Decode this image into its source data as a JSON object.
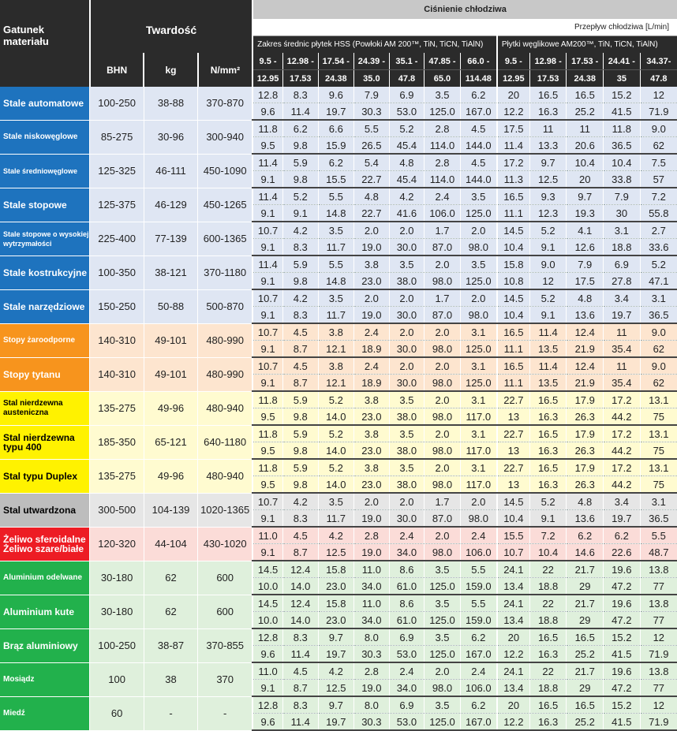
{
  "header": {
    "material_label": "Gatunek materiału",
    "hardness_label": "Twardość",
    "pressure_label": "Ciśnienie chłodziwa",
    "flow_label": "Przepływ chłodziwa [L/min]",
    "hss_label": "Zakres średnic płytek HSS (Powłoki AM 200™, TiN, TiCN, TiAlN)",
    "carbide_label": "Płytki węglikowe AM200™, TiN, TiCN, TiAlN)",
    "units": [
      "BHN",
      "kg",
      "N/mm²"
    ],
    "hss_ranges": [
      {
        "top": "9.5 -",
        "bottom": "12.95"
      },
      {
        "top": "12.98 -",
        "bottom": "17.53"
      },
      {
        "top": "17.54 -",
        "bottom": "24.38"
      },
      {
        "top": "24.39 -",
        "bottom": "35.0"
      },
      {
        "top": "35.1 -",
        "bottom": "47.8"
      },
      {
        "top": "47.85 -",
        "bottom": "65.0"
      },
      {
        "top": "66.0 -",
        "bottom": "114.48"
      }
    ],
    "carbide_ranges": [
      {
        "top": "9.5 -",
        "bottom": "12.95"
      },
      {
        "top": "12.98 -",
        "bottom": "17.53"
      },
      {
        "top": "17.53 -",
        "bottom": "24.38"
      },
      {
        "top": "24.41 -",
        "bottom": "35"
      },
      {
        "top": "34.37-",
        "bottom": "47.8"
      }
    ]
  },
  "colors": {
    "blue": "#1e73be",
    "orange": "#f7941d",
    "yellow": "#fff200",
    "gray": "#bdbdbd",
    "red": "#ed1c24",
    "green": "#22b14c"
  },
  "rows": [
    {
      "material": "Stale automatowe",
      "color": "blue",
      "size": "l",
      "bhn": "100-250",
      "kg": "38-88",
      "nmm": "370-870",
      "r1": [
        "12.8",
        "8.3",
        "9.6",
        "7.9",
        "6.9",
        "3.5",
        "6.2",
        "20",
        "16.5",
        "16.5",
        "15.2",
        "12"
      ],
      "r2": [
        "9.6",
        "11.4",
        "19.7",
        "30.3",
        "53.0",
        "125.0",
        "167.0",
        "12.2",
        "16.3",
        "25.2",
        "41.5",
        "71.9"
      ]
    },
    {
      "material": "Stale niskowęglowe",
      "color": "blue",
      "size": "s",
      "bhn": "85-275",
      "kg": "30-96",
      "nmm": "300-940",
      "r1": [
        "11.8",
        "6.2",
        "6.6",
        "5.5",
        "5.2",
        "2.8",
        "4.5",
        "17.5",
        "11",
        "11",
        "11.8",
        "9.0"
      ],
      "r2": [
        "9.5",
        "9.8",
        "15.9",
        "26.5",
        "45.4",
        "114.0",
        "144.0",
        "11.4",
        "13.3",
        "20.6",
        "36.5",
        "62"
      ]
    },
    {
      "material": "Stale średniowęglowe",
      "color": "blue",
      "size": "xs",
      "bhn": "125-325",
      "kg": "46-111",
      "nmm": "450-1090",
      "r1": [
        "11.4",
        "5.9",
        "6.2",
        "5.4",
        "4.8",
        "2.8",
        "4.5",
        "17.2",
        "9.7",
        "10.4",
        "10.4",
        "7.5"
      ],
      "r2": [
        "9.1",
        "9.8",
        "15.5",
        "22.7",
        "45.4",
        "114.0",
        "144.0",
        "11.3",
        "12.5",
        "20",
        "33.8",
        "57"
      ]
    },
    {
      "material": "Stale stopowe",
      "color": "blue",
      "size": "l",
      "bhn": "125-375",
      "kg": "46-129",
      "nmm": "450-1265",
      "r1": [
        "11.4",
        "5.2",
        "5.5",
        "4.8",
        "4.2",
        "2.4",
        "3.5",
        "16.5",
        "9.3",
        "9.7",
        "7.9",
        "7.2"
      ],
      "r2": [
        "9.1",
        "9.1",
        "14.8",
        "22.7",
        "41.6",
        "106.0",
        "125.0",
        "11.1",
        "12.3",
        "19.3",
        "30",
        "55.8"
      ]
    },
    {
      "material": "Stale stopowe o wysokiej wytrzymałości",
      "color": "blue",
      "size": "xs",
      "bhn": "225-400",
      "kg": "77-139",
      "nmm": "600-1365",
      "r1": [
        "10.7",
        "4.2",
        "3.5",
        "2.0",
        "2.0",
        "1.7",
        "2.0",
        "14.5",
        "5.2",
        "4.1",
        "3.1",
        "2.7"
      ],
      "r2": [
        "9.1",
        "8.3",
        "11.7",
        "19.0",
        "30.0",
        "87.0",
        "98.0",
        "10.4",
        "9.1",
        "12.6",
        "18.8",
        "33.6"
      ]
    },
    {
      "material": "Stale kostrukcyjne",
      "color": "blue",
      "size": "l",
      "bhn": "100-350",
      "kg": "38-121",
      "nmm": "370-1180",
      "r1": [
        "11.4",
        "5.9",
        "5.5",
        "3.8",
        "3.5",
        "2.0",
        "3.5",
        "15.8",
        "9.0",
        "7.9",
        "6.9",
        "5.2"
      ],
      "r2": [
        "9.1",
        "9.8",
        "14.8",
        "23.0",
        "38.0",
        "98.0",
        "125.0",
        "10.8",
        "12",
        "17.5",
        "27.8",
        "47.1"
      ]
    },
    {
      "material": "Stale narzędziowe",
      "color": "blue",
      "size": "l",
      "bhn": "150-250",
      "kg": "50-88",
      "nmm": "500-870",
      "r1": [
        "10.7",
        "4.2",
        "3.5",
        "2.0",
        "2.0",
        "1.7",
        "2.0",
        "14.5",
        "5.2",
        "4.8",
        "3.4",
        "3.1"
      ],
      "r2": [
        "9.1",
        "8.3",
        "11.7",
        "19.0",
        "30.0",
        "87.0",
        "98.0",
        "10.4",
        "9.1",
        "13.6",
        "19.7",
        "36.5"
      ]
    },
    {
      "material": "Stopy żaroodporne",
      "color": "orange",
      "size": "s",
      "bhn": "140-310",
      "kg": "49-101",
      "nmm": "480-990",
      "r1": [
        "10.7",
        "4.5",
        "3.8",
        "2.4",
        "2.0",
        "2.0",
        "3.1",
        "16.5",
        "11.4",
        "12.4",
        "11",
        "9.0"
      ],
      "r2": [
        "9.1",
        "8.7",
        "12.1",
        "18.9",
        "30.0",
        "98.0",
        "125.0",
        "11.1",
        "13.5",
        "21.9",
        "35.4",
        "62"
      ]
    },
    {
      "material": "Stopy tytanu",
      "color": "orange",
      "size": "l",
      "bhn": "140-310",
      "kg": "49-101",
      "nmm": "480-990",
      "r1": [
        "10.7",
        "4.5",
        "3.8",
        "2.4",
        "2.0",
        "2.0",
        "3.1",
        "16.5",
        "11.4",
        "12.4",
        "11",
        "9.0"
      ],
      "r2": [
        "9.1",
        "8.7",
        "12.1",
        "18.9",
        "30.0",
        "98.0",
        "125.0",
        "11.1",
        "13.5",
        "21.9",
        "35.4",
        "62"
      ]
    },
    {
      "material": "Stal nierdzewna austeniczna",
      "color": "yellow",
      "size": "s",
      "bhn": "135-275",
      "kg": "49-96",
      "nmm": "480-940",
      "r1": [
        "11.8",
        "5.9",
        "5.2",
        "3.8",
        "3.5",
        "2.0",
        "3.1",
        "22.7",
        "16.5",
        "17.9",
        "17.2",
        "13.1"
      ],
      "r2": [
        "9.5",
        "9.8",
        "14.0",
        "23.0",
        "38.0",
        "98.0",
        "117.0",
        "13",
        "16.3",
        "26.3",
        "44.2",
        "75"
      ]
    },
    {
      "material": "Stal nierdzewna typu 400",
      "color": "yellow",
      "size": "l",
      "bhn": "185-350",
      "kg": "65-121",
      "nmm": "640-1180",
      "r1": [
        "11.8",
        "5.9",
        "5.2",
        "3.8",
        "3.5",
        "2.0",
        "3.1",
        "22.7",
        "16.5",
        "17.9",
        "17.2",
        "13.1"
      ],
      "r2": [
        "9.5",
        "9.8",
        "14.0",
        "23.0",
        "38.0",
        "98.0",
        "117.0",
        "13",
        "16.3",
        "26.3",
        "44.2",
        "75"
      ]
    },
    {
      "material": "Stal typu Duplex",
      "color": "yellow",
      "size": "l",
      "bhn": "135-275",
      "kg": "49-96",
      "nmm": "480-940",
      "r1": [
        "11.8",
        "5.9",
        "5.2",
        "3.8",
        "3.5",
        "2.0",
        "3.1",
        "22.7",
        "16.5",
        "17.9",
        "17.2",
        "13.1"
      ],
      "r2": [
        "9.5",
        "9.8",
        "14.0",
        "23.0",
        "38.0",
        "98.0",
        "117.0",
        "13",
        "16.3",
        "26.3",
        "44.2",
        "75"
      ]
    },
    {
      "material": "Stal utwardzona",
      "color": "gray",
      "size": "l",
      "bhn": "300-500",
      "kg": "104-139",
      "nmm": "1020-1365",
      "r1": [
        "10.7",
        "4.2",
        "3.5",
        "2.0",
        "2.0",
        "1.7",
        "2.0",
        "14.5",
        "5.2",
        "4.8",
        "3.4",
        "3.1"
      ],
      "r2": [
        "9.1",
        "8.3",
        "11.7",
        "19.0",
        "30.0",
        "87.0",
        "98.0",
        "10.4",
        "9.1",
        "13.6",
        "19.7",
        "36.5"
      ]
    },
    {
      "material": "Żeliwo sferoidalne Żeliwo szare/białe",
      "color": "red",
      "size": "l",
      "bhn": "120-320",
      "kg": "44-104",
      "nmm": "430-1020",
      "r1": [
        "11.0",
        "4.5",
        "4.2",
        "2.8",
        "2.4",
        "2.0",
        "2.4",
        "15.5",
        "7.2",
        "6.2",
        "6.2",
        "5.5"
      ],
      "r2": [
        "9.1",
        "8.7",
        "12.5",
        "19.0",
        "34.0",
        "98.0",
        "106.0",
        "10.7",
        "10.4",
        "14.6",
        "22.6",
        "48.7"
      ]
    },
    {
      "material": "Aluminium odelwane",
      "color": "green",
      "size": "s",
      "bhn": "30-180",
      "kg": "62",
      "nmm": "600",
      "r1": [
        "14.5",
        "12.4",
        "15.8",
        "11.0",
        "8.6",
        "3.5",
        "5.5",
        "24.1",
        "22",
        "21.7",
        "19.6",
        "13.8"
      ],
      "r2": [
        "10.0",
        "14.0",
        "23.0",
        "34.0",
        "61.0",
        "125.0",
        "159.0",
        "13.4",
        "18.8",
        "29",
        "47.2",
        "77"
      ]
    },
    {
      "material": "Aluminium kute",
      "color": "green",
      "size": "l",
      "bhn": "30-180",
      "kg": "62",
      "nmm": "600",
      "r1": [
        "14.5",
        "12.4",
        "15.8",
        "11.0",
        "8.6",
        "3.5",
        "5.5",
        "24.1",
        "22",
        "21.7",
        "19.6",
        "13.8"
      ],
      "r2": [
        "10.0",
        "14.0",
        "23.0",
        "34.0",
        "61.0",
        "125.0",
        "159.0",
        "13.4",
        "18.8",
        "29",
        "47.2",
        "77"
      ]
    },
    {
      "material": "Brąz aluminiowy",
      "color": "green",
      "size": "l",
      "bhn": "100-250",
      "kg": "38-87",
      "nmm": "370-855",
      "r1": [
        "12.8",
        "8.3",
        "9.7",
        "8.0",
        "6.9",
        "3.5",
        "6.2",
        "20",
        "16.5",
        "16.5",
        "15.2",
        "12"
      ],
      "r2": [
        "9.6",
        "11.4",
        "19.7",
        "30.3",
        "53.0",
        "125.0",
        "167.0",
        "12.2",
        "16.3",
        "25.2",
        "41.5",
        "71.9"
      ]
    },
    {
      "material": "Mosiądz",
      "color": "green",
      "size": "s",
      "bhn": "100",
      "kg": "38",
      "nmm": "370",
      "r1": [
        "11.0",
        "4.5",
        "4.2",
        "2.8",
        "2.4",
        "2.0",
        "2.4",
        "24.1",
        "22",
        "21.7",
        "19.6",
        "13.8"
      ],
      "r2": [
        "9.1",
        "8.7",
        "12.5",
        "19.0",
        "34.0",
        "98.0",
        "106.0",
        "13.4",
        "18.8",
        "29",
        "47.2",
        "77"
      ]
    },
    {
      "material": "Miedź",
      "color": "green",
      "size": "s",
      "bhn": "60",
      "kg": "-",
      "nmm": "-",
      "r1": [
        "12.8",
        "8.3",
        "9.7",
        "8.0",
        "6.9",
        "3.5",
        "6.2",
        "20",
        "16.5",
        "16.5",
        "15.2",
        "12"
      ],
      "r2": [
        "9.6",
        "11.4",
        "19.7",
        "30.3",
        "53.0",
        "125.0",
        "167.0",
        "12.2",
        "16.3",
        "25.2",
        "41.5",
        "71.9"
      ]
    }
  ]
}
